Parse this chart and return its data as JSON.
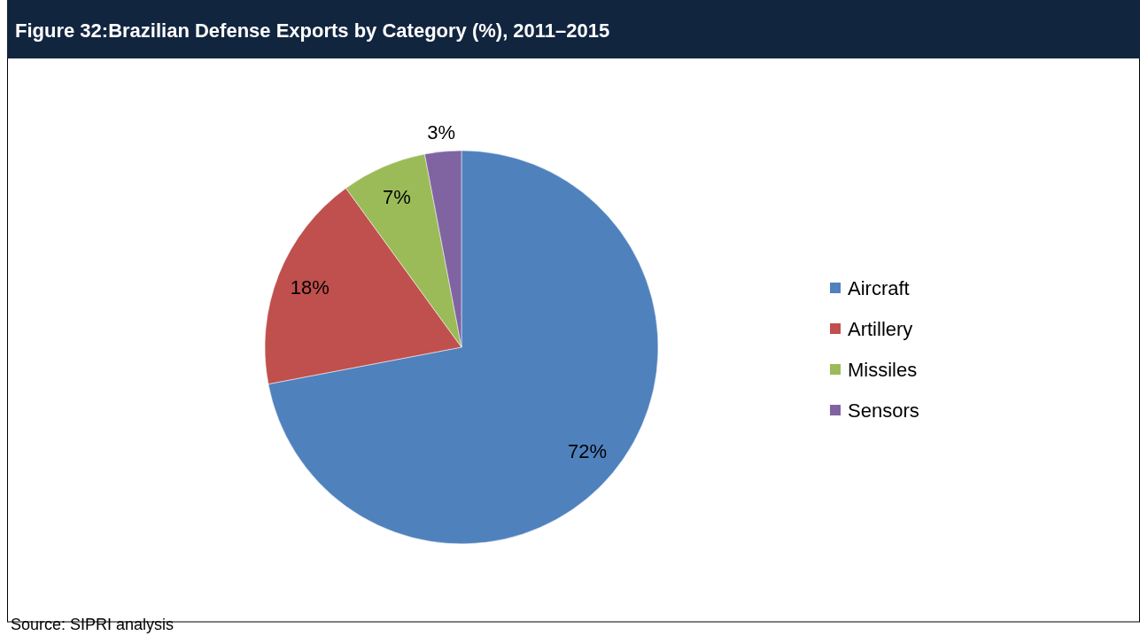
{
  "chart_data": {
    "type": "pie",
    "title": "Figure 32:Brazilian Defense Exports by Category (%), 2011–2015",
    "categories": [
      "Aircraft",
      "Artillery",
      "Missiles",
      "Sensors"
    ],
    "values": [
      72,
      18,
      7,
      3
    ],
    "colors": [
      "#4f81bd",
      "#c0504d",
      "#9bbb59",
      "#8064a2"
    ],
    "value_labels": [
      "72%",
      "18%",
      "7%",
      "3%"
    ],
    "legend": "right",
    "annotations": [
      "Source: SIPRI analysis"
    ]
  }
}
